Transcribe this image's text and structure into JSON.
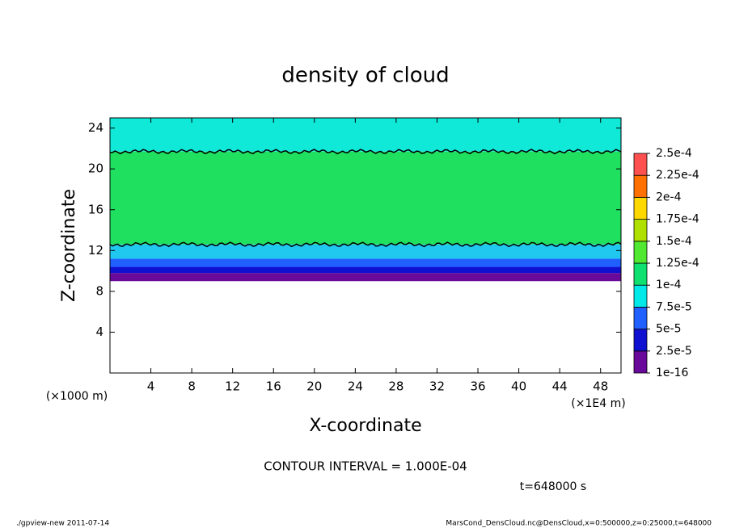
{
  "chart_data": {
    "type": "contour",
    "title": "density of cloud",
    "xlabel": "X-coordinate",
    "ylabel": "Z-coordinate",
    "x_unit": "(×1E4 m)",
    "y_unit": "(×1000 m)",
    "xlim": [
      0,
      50
    ],
    "xticks": [
      4,
      8,
      12,
      16,
      20,
      24,
      28,
      32,
      36,
      40,
      44,
      48
    ],
    "ylim": [
      0,
      25
    ],
    "yticks": [
      4,
      8,
      12,
      16,
      20,
      24
    ],
    "colorbar_ticks": [
      1e-16,
      {
        "value": 2.5e-05,
        "label": "2.5e-5"
      },
      {
        "value": 5e-05,
        "label": "5e-5"
      },
      {
        "value": 7.5e-05,
        "label": "7.5e-5"
      },
      {
        "value": 0.0001,
        "label": "1e-4"
      },
      {
        "value": 0.000125,
        "label": "1.25e-4"
      },
      {
        "value": 0.00015,
        "label": "1.5e-4"
      },
      {
        "value": 0.000175,
        "label": "1.75e-4"
      },
      {
        "value": 0.0002,
        "label": "2e-4"
      },
      {
        "value": 0.000225,
        "label": "2.25e-4"
      },
      {
        "value": 0.00025,
        "label": "2.5e-4"
      }
    ],
    "colorbar_colors": [
      "#6a0a9a",
      "#1010d0",
      "#2060ff",
      "#00e8e8",
      "#10e070",
      "#50e830",
      "#b0e000",
      "#ffd800",
      "#ff7000",
      "#ff5050"
    ],
    "layers": [
      {
        "from": 9,
        "to": 9.8,
        "color": "#6a0a9a"
      },
      {
        "from": 9.8,
        "to": 10.4,
        "color": "#1010d0"
      },
      {
        "from": 10.4,
        "to": 11.2,
        "color": "#2060ff"
      },
      {
        "from": 11.2,
        "to": 12.6,
        "color": "#20c8f0"
      },
      {
        "from": 12.6,
        "to": 21.7,
        "color": "#20e060"
      },
      {
        "from": 21.7,
        "to": 25,
        "color": "#10e8d8"
      }
    ],
    "contour_lines": [
      12.6,
      21.7
    ],
    "contour_interval": "CONTOUR INTERVAL = 1.000E-04",
    "time": "t=648000 s",
    "footer_left": "./gpview-new  2011-07-14",
    "footer_right": "MarsCond_DensCloud.nc@DensCloud,x=0:500000,z=0:25000,t=648000"
  }
}
